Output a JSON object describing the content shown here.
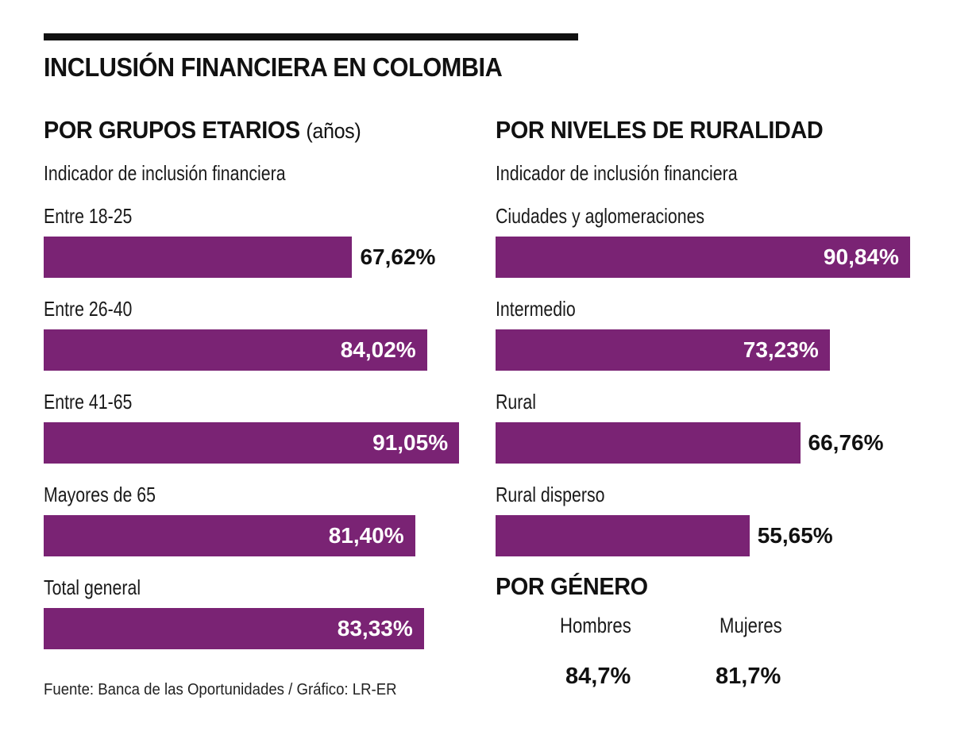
{
  "title": "INCLUSIÓN FINANCIERA EN COLOMBIA",
  "colors": {
    "bar": "#7a2374",
    "text": "#111111",
    "rule": "#111111",
    "value_inside": "#ffffff"
  },
  "source": "Fuente: Banca de las Oportunidades / Gráfico: LR-ER",
  "chart_data": [
    {
      "type": "bar",
      "orientation": "horizontal",
      "title": "POR GRUPOS ETARIOS",
      "title_unit": "(años)",
      "subtitle": "Indicador de inclusión financiera",
      "categories": [
        "Entre 18-25",
        "Entre 26-40",
        "Entre 41-65",
        "Mayores de 65",
        "Total general"
      ],
      "values": [
        67.62,
        84.02,
        91.05,
        81.4,
        83.33
      ],
      "value_labels": [
        "67,62%",
        "84,02%",
        "91,05%",
        "81,40%",
        "83,33%"
      ],
      "label_inside": [
        false,
        true,
        true,
        true,
        true
      ],
      "unit": "%",
      "xlim": [
        0,
        100
      ],
      "grid": false
    },
    {
      "type": "bar",
      "orientation": "horizontal",
      "title": "POR NIVELES DE RURALIDAD",
      "subtitle": "Indicador de inclusión financiera",
      "categories": [
        "Ciudades y aglomeraciones",
        "Intermedio",
        "Rural",
        "Rural disperso"
      ],
      "values": [
        90.84,
        73.23,
        66.76,
        55.65
      ],
      "value_labels": [
        "90,84%",
        "73,23%",
        "66,76%",
        "55,65%"
      ],
      "label_inside": [
        true,
        true,
        false,
        false
      ],
      "unit": "%",
      "xlim": [
        0,
        100
      ],
      "grid": false
    },
    {
      "type": "table",
      "title": "POR GÉNERO",
      "categories": [
        "Hombres",
        "Mujeres"
      ],
      "values": [
        84.7,
        81.7
      ],
      "value_labels": [
        "84,7%",
        "81,7%"
      ],
      "unit": "%"
    }
  ]
}
